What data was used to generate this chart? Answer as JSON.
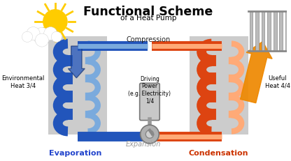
{
  "title": "Functional Scheme",
  "subtitle": "of a Heat Pump",
  "label_compression": "Compression",
  "label_expansion": "Expansion",
  "label_evaporation": "Evaporation",
  "label_condensation": "Condensation",
  "label_env_heat": "Environmental\nHeat 3/4",
  "label_useful_heat": "Useful\nHeat 4/4",
  "label_driving": "Driving\nPower\n(e.g. Electricity)\n1/4",
  "bg_color": "#ffffff",
  "blue_dark": "#1a3a7a",
  "blue_mid": "#2255bb",
  "blue_light": "#7aaadd",
  "red_dark": "#bb2200",
  "red_mid": "#dd4411",
  "red_light": "#ffaa77",
  "orange_arrow": "#ee8800",
  "evap_color": "#2244cc",
  "cond_color": "#cc3300",
  "comp_color": "#222222",
  "exp_color": "#999999",
  "gray_bg": "#cccccc",
  "radiator_color": "#aaaaaa"
}
